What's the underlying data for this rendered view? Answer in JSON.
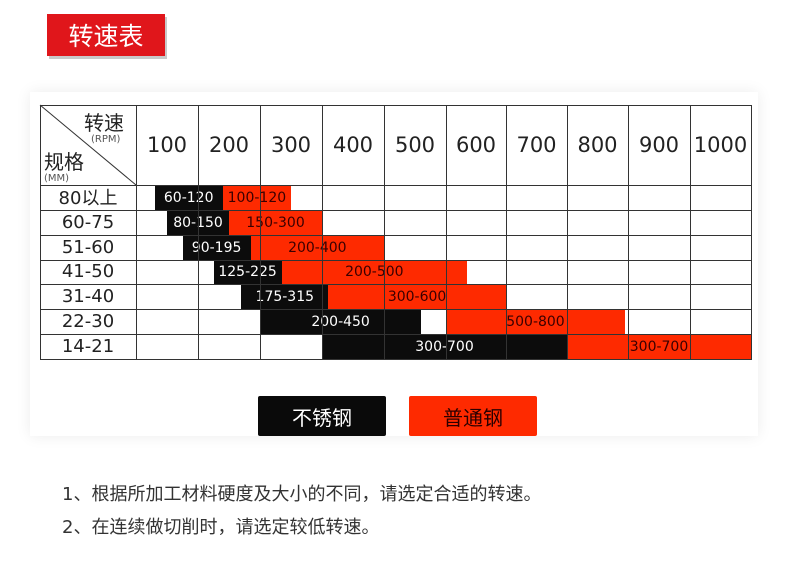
{
  "title": "转速表",
  "table": {
    "corner": {
      "top_label": "转速",
      "top_unit": "(RPM)",
      "left_label": "规格",
      "left_unit": "(MM)"
    },
    "columns": [
      "100",
      "200",
      "300",
      "400",
      "500",
      "600",
      "700",
      "800",
      "900",
      "1000"
    ],
    "rows": [
      {
        "label": "80以上",
        "bars": [
          {
            "type": "stainless",
            "text": "60-120",
            "start": 0.3,
            "end": 1.4
          },
          {
            "type": "ordinary",
            "text": "100-120",
            "start": 1.4,
            "end": 2.5
          }
        ]
      },
      {
        "label": "60-75",
        "bars": [
          {
            "type": "stainless",
            "text": "80-150",
            "start": 0.5,
            "end": 1.5
          },
          {
            "type": "ordinary",
            "text": "150-300",
            "start": 1.5,
            "end": 3.0
          }
        ]
      },
      {
        "label": "51-60",
        "bars": [
          {
            "type": "stainless",
            "text": "90-195",
            "start": 0.75,
            "end": 1.85
          },
          {
            "type": "ordinary",
            "text": "200-400",
            "start": 1.85,
            "end": 4.0
          }
        ]
      },
      {
        "label": "41-50",
        "bars": [
          {
            "type": "stainless",
            "text": "125-225",
            "start": 1.25,
            "end": 2.35
          },
          {
            "type": "ordinary",
            "text": "200-500",
            "start": 2.35,
            "end": 5.35
          }
        ]
      },
      {
        "label": "31-40",
        "bars": [
          {
            "type": "stainless",
            "text": "175-315",
            "start": 1.7,
            "end": 3.1
          },
          {
            "type": "ordinary",
            "text": "300-600",
            "start": 3.1,
            "end": 6.0
          }
        ]
      },
      {
        "label": "22-30",
        "bars": [
          {
            "type": "stainless",
            "text": "200-450",
            "start": 2.0,
            "end": 4.6
          },
          {
            "type": "ordinary",
            "text": "500-800",
            "start": 5.0,
            "end": 7.95
          }
        ]
      },
      {
        "label": "14-21",
        "bars": [
          {
            "type": "stainless",
            "text": "300-700",
            "start": 3.0,
            "end": 7.0
          },
          {
            "type": "ordinary",
            "text": "300-700",
            "start": 7.0,
            "end": 10.0
          }
        ]
      }
    ]
  },
  "legend": {
    "stainless": "不锈钢",
    "ordinary": "普通钢"
  },
  "notes": [
    "1、根据所加工材料硬度及大小的不同，请选定合适的转速。",
    "2、在连续做切削时，请选定较低转速。"
  ],
  "colors": {
    "accent_red": "#e0161b",
    "bar_red": "#fe2a00",
    "bar_black": "#0c0c0c"
  }
}
